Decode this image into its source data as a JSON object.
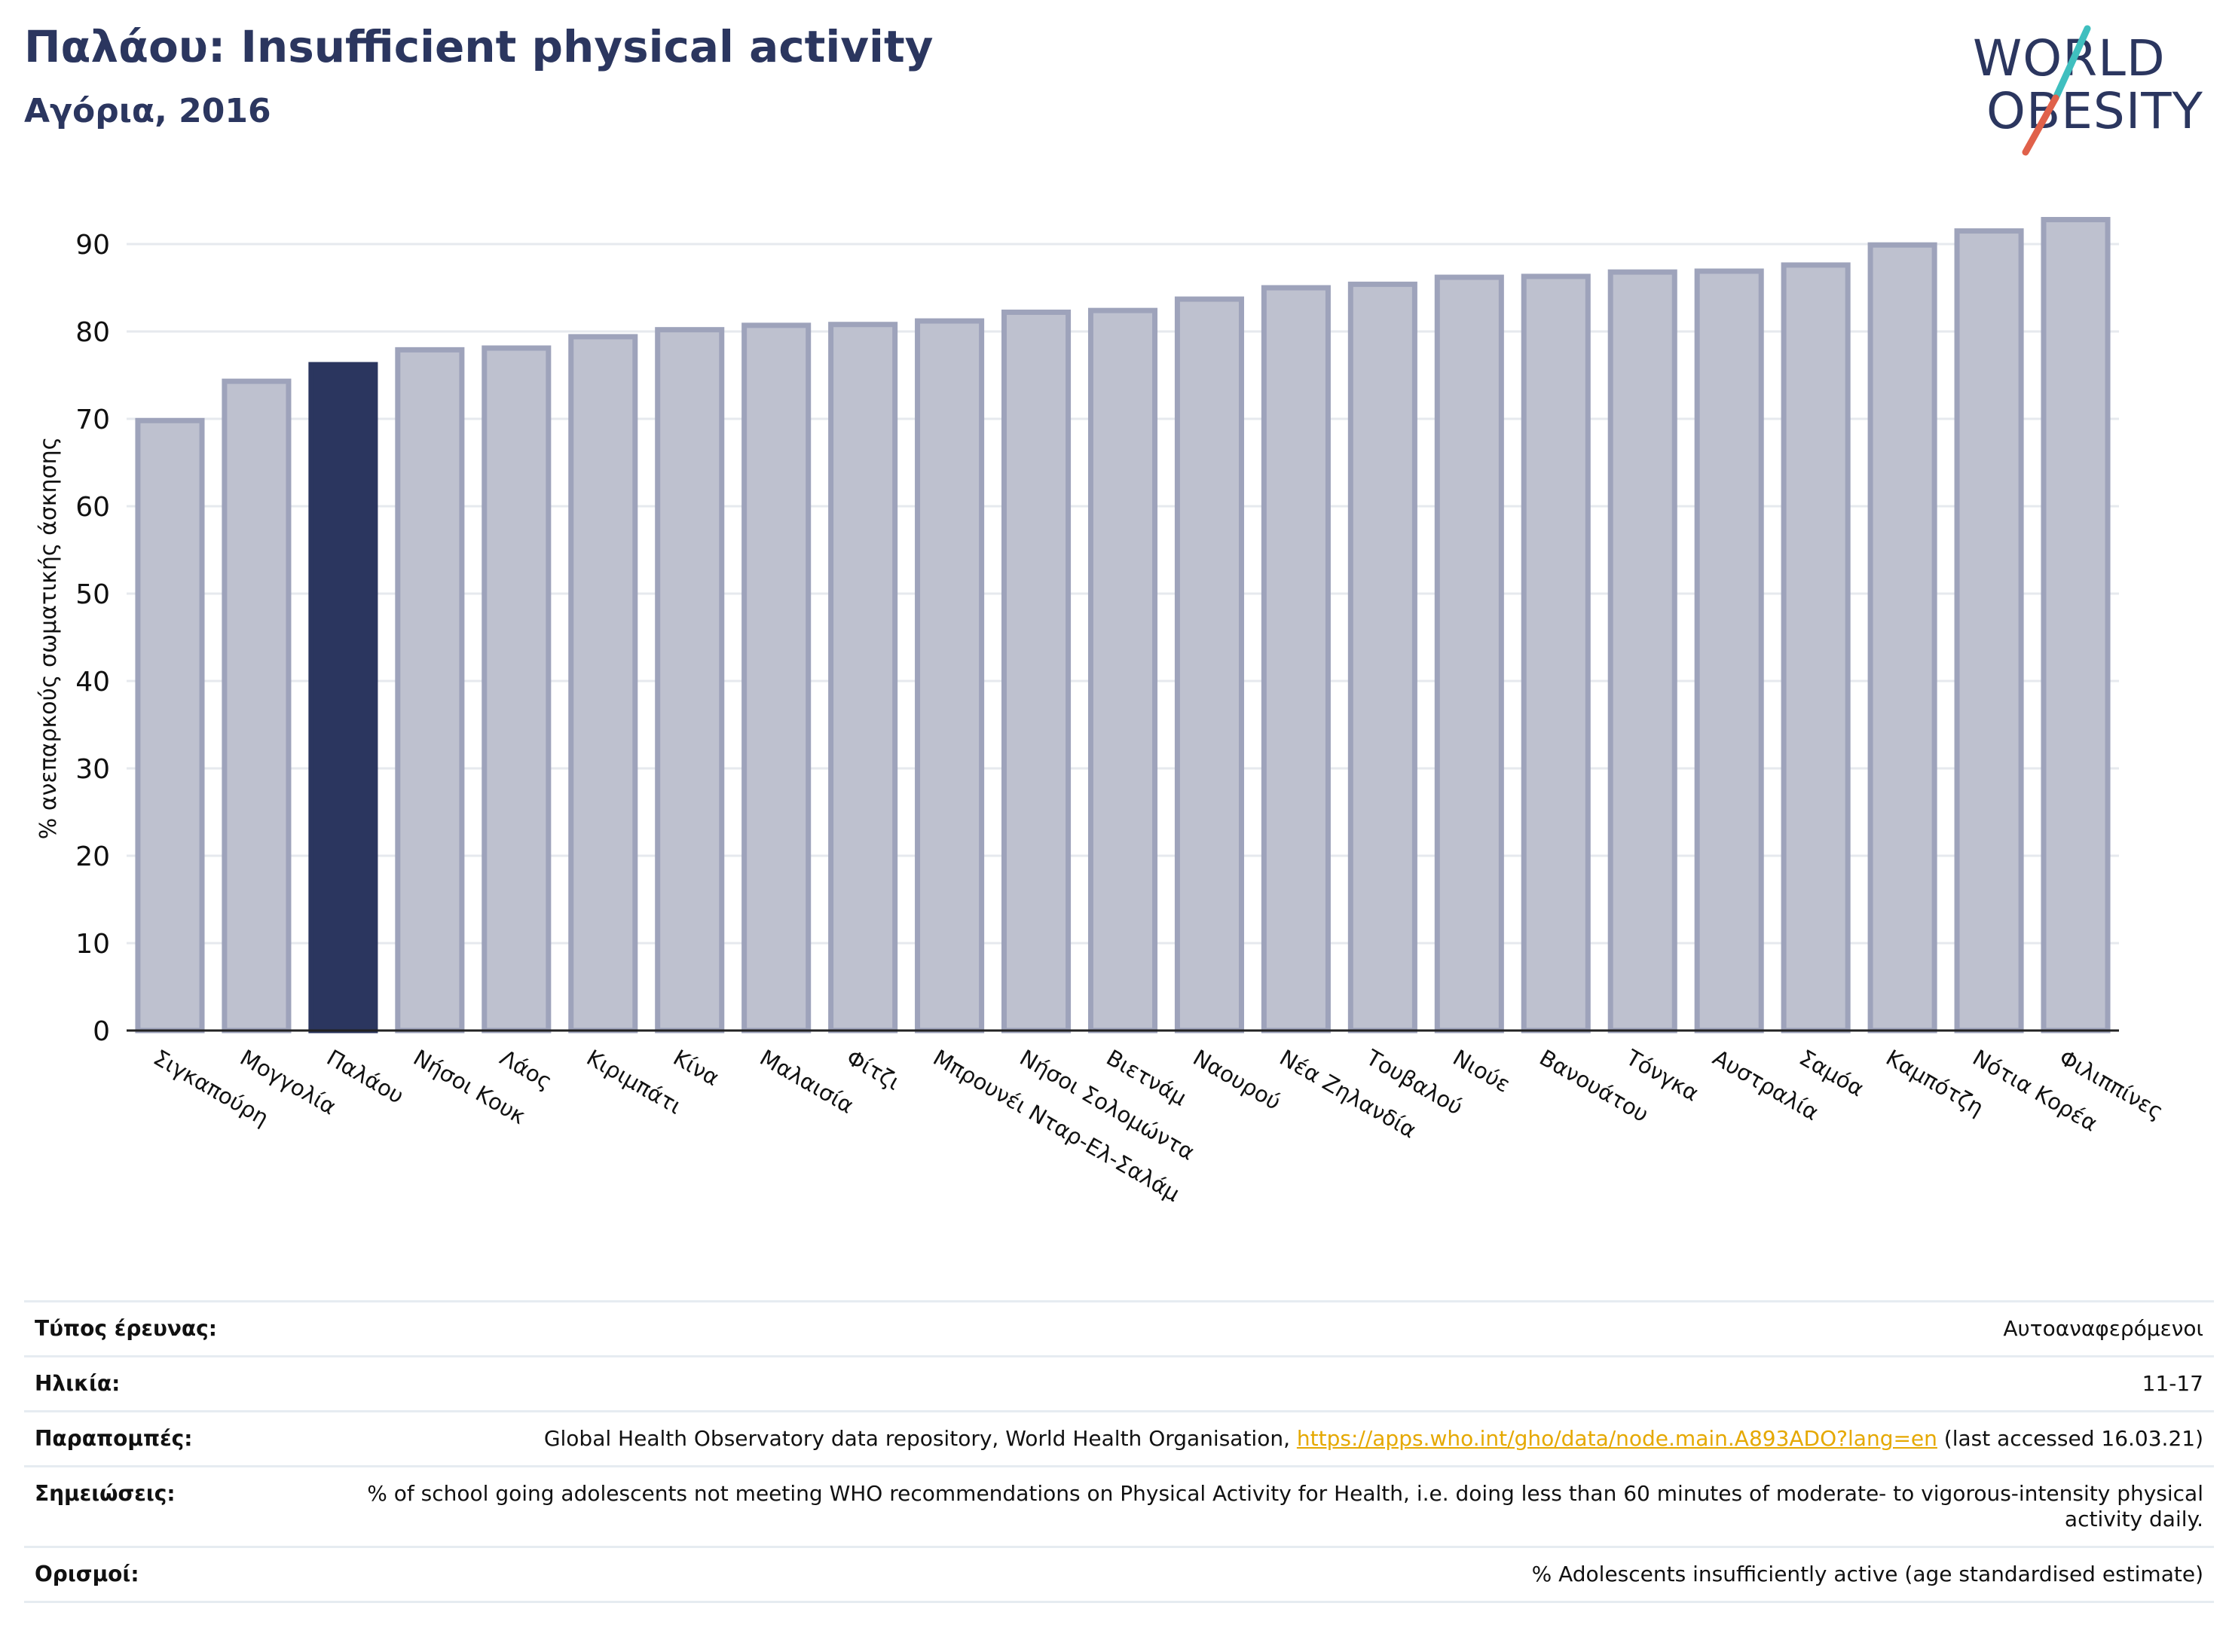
{
  "header": {
    "title": "Παλάου: Insufficient physical activity",
    "subtitle": "Αγόρια, 2016"
  },
  "logo": {
    "line1": "WORLD",
    "line2": "OBESITY",
    "colors": {
      "text": "#2b365f",
      "slash_teal": "#3fbfbf",
      "slash_red": "#e0614a"
    }
  },
  "chart_data": {
    "type": "bar",
    "ylabel": "% ανεπαρκούς σωματικής άσκησης",
    "ylim": [
      0,
      95
    ],
    "yticks": [
      0,
      10,
      20,
      30,
      40,
      50,
      60,
      70,
      80,
      90
    ],
    "grid": true,
    "highlight": "Παλάου",
    "colors": {
      "bar": "#bec1cf",
      "bar_edge": "#9ea3bb",
      "highlight": "#2b365f",
      "grid": "#e6e9ee"
    },
    "categories": [
      "Σιγκαπούρη",
      "Μογγολία",
      "Παλάου",
      "Νήσοι Κουκ",
      "Λάος",
      "Κιριμπάτι",
      "Κίνα",
      "Μαλαισία",
      "Φίτζι",
      "Μπρουνέι Νταρ-Ελ-Σαλάμ",
      "Νήσοι Σολομώντα",
      "Βιετνάμ",
      "Ναουρού",
      "Νέα Ζηλανδία",
      "Τουβαλού",
      "Νιούε",
      "Βανουάτου",
      "Τόνγκα",
      "Αυστραλία",
      "Σαμόα",
      "Καμπότζη",
      "Νότια Κορέα",
      "Φιλιππίνες"
    ],
    "values": [
      69.8,
      74.3,
      76.2,
      77.9,
      78.1,
      79.4,
      80.2,
      80.7,
      80.8,
      81.2,
      82.2,
      82.4,
      83.7,
      85.0,
      85.4,
      86.2,
      86.3,
      86.8,
      86.9,
      87.6,
      89.9,
      91.5,
      92.8
    ]
  },
  "meta": {
    "rows": [
      {
        "label": "Τύπος έρευνας:",
        "value": "Αυτοαναφερόμενοι"
      },
      {
        "label": "Ηλικία:",
        "value": "11-17"
      },
      {
        "label": "Παραπομπές:",
        "value_pre": "Global Health Observatory data repository, World Health Organisation, ",
        "link": "https://apps.who.int/gho/data/node.main.A893ADO?lang=en",
        "value_post": " (last accessed 16.03.21)"
      },
      {
        "label": "Σημειώσεις:",
        "value": "% of school going adolescents not meeting WHO recommendations on Physical Activity for Health, i.e. doing less than 60 minutes of moderate- to vigorous-intensity physical activity daily."
      },
      {
        "label": "Ορισμοί:",
        "value": "% Adolescents insufficiently active (age standardised estimate)"
      }
    ]
  }
}
